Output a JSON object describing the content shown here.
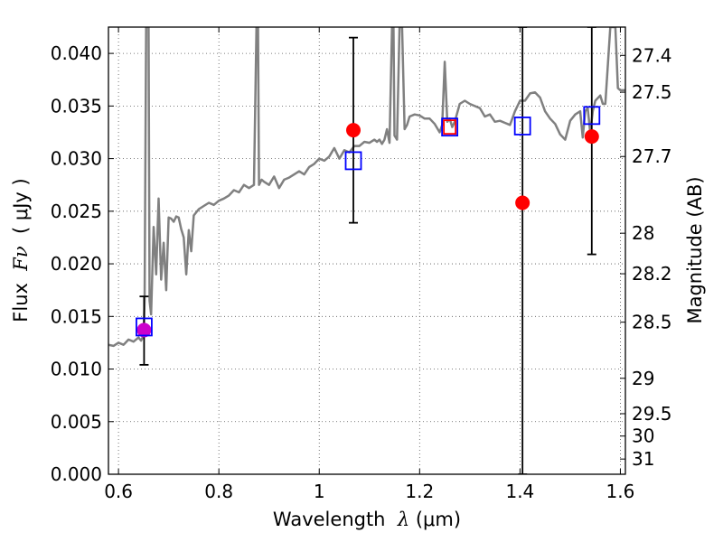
{
  "chart_data": {
    "type": "line",
    "xlabel": "Wavelength",
    "xlabel_symbol": "λ",
    "xlabel_unit": "(μm)",
    "ylabel": "Flux",
    "ylabel_symbol": "Fν",
    "ylabel_unit": "( μJy )",
    "ylabel_right": "Magnitude (AB)",
    "xlim": [
      0.58,
      1.61
    ],
    "ylim": [
      0.0,
      0.0425
    ],
    "grid": true,
    "x_ticks": [
      {
        "value": 0.6,
        "label": "0.6"
      },
      {
        "value": 0.8,
        "label": "0.8"
      },
      {
        "value": 1.0,
        "label": "1"
      },
      {
        "value": 1.2,
        "label": "1.2"
      },
      {
        "value": 1.4,
        "label": "1.4"
      },
      {
        "value": 1.6,
        "label": "1.6"
      }
    ],
    "y_ticks": [
      {
        "value": 0.0,
        "label": "0.000"
      },
      {
        "value": 0.005,
        "label": "0.005"
      },
      {
        "value": 0.01,
        "label": "0.010"
      },
      {
        "value": 0.015,
        "label": "0.015"
      },
      {
        "value": 0.02,
        "label": "0.020"
      },
      {
        "value": 0.025,
        "label": "0.025"
      },
      {
        "value": 0.03,
        "label": "0.030"
      },
      {
        "value": 0.035,
        "label": "0.035"
      },
      {
        "value": 0.04,
        "label": "0.040"
      }
    ],
    "y_right_ticks": [
      {
        "value": 27.4,
        "label": "27.4"
      },
      {
        "value": 27.5,
        "label": "27.5"
      },
      {
        "value": 27.7,
        "label": "27.7"
      },
      {
        "value": 28.0,
        "label": "28"
      },
      {
        "value": 28.2,
        "label": "28.2"
      },
      {
        "value": 28.5,
        "label": "28.5"
      },
      {
        "value": 29.0,
        "label": "29"
      },
      {
        "value": 29.5,
        "label": "29.5"
      },
      {
        "value": 30.0,
        "label": "30"
      },
      {
        "value": 31.0,
        "label": "31"
      }
    ],
    "series": [
      {
        "role": "model_spectrum",
        "color": "#808080",
        "x": [
          0.58,
          0.59,
          0.6,
          0.61,
          0.62,
          0.63,
          0.64,
          0.645,
          0.65,
          0.652,
          0.655,
          0.66,
          0.662,
          0.665,
          0.67,
          0.675,
          0.68,
          0.685,
          0.69,
          0.695,
          0.7,
          0.705,
          0.71,
          0.715,
          0.72,
          0.725,
          0.73,
          0.735,
          0.74,
          0.745,
          0.75,
          0.76,
          0.77,
          0.78,
          0.79,
          0.8,
          0.81,
          0.82,
          0.83,
          0.84,
          0.85,
          0.86,
          0.87,
          0.875,
          0.876,
          0.878,
          0.88,
          0.885,
          0.89,
          0.9,
          0.91,
          0.92,
          0.93,
          0.94,
          0.95,
          0.96,
          0.97,
          0.98,
          0.99,
          1.0,
          1.01,
          1.02,
          1.03,
          1.04,
          1.05,
          1.06,
          1.07,
          1.08,
          1.09,
          1.1,
          1.11,
          1.115,
          1.12,
          1.125,
          1.13,
          1.135,
          1.14,
          1.145,
          1.148,
          1.15,
          1.155,
          1.16,
          1.165,
          1.17,
          1.175,
          1.18,
          1.19,
          1.2,
          1.21,
          1.22,
          1.23,
          1.24,
          1.245,
          1.25,
          1.255,
          1.26,
          1.265,
          1.27,
          1.28,
          1.29,
          1.3,
          1.31,
          1.32,
          1.33,
          1.34,
          1.35,
          1.36,
          1.37,
          1.38,
          1.39,
          1.4,
          1.41,
          1.42,
          1.43,
          1.44,
          1.45,
          1.46,
          1.47,
          1.48,
          1.49,
          1.5,
          1.51,
          1.52,
          1.525,
          1.53,
          1.535,
          1.54,
          1.545,
          1.55,
          1.56,
          1.565,
          1.57,
          1.58,
          1.585,
          1.59,
          1.595,
          1.6,
          1.61
        ],
        "y": [
          0.0123,
          0.0122,
          0.0125,
          0.0123,
          0.0128,
          0.0126,
          0.013,
          0.0127,
          0.0132,
          0.0165,
          0.0425,
          0.0425,
          0.0165,
          0.0152,
          0.0235,
          0.019,
          0.0262,
          0.0185,
          0.022,
          0.0175,
          0.0244,
          0.0243,
          0.024,
          0.0245,
          0.0244,
          0.0233,
          0.0225,
          0.019,
          0.0232,
          0.0212,
          0.0246,
          0.0252,
          0.0255,
          0.0258,
          0.0256,
          0.026,
          0.0262,
          0.0265,
          0.027,
          0.0268,
          0.0275,
          0.0272,
          0.0275,
          0.0425,
          0.0425,
          0.0425,
          0.0275,
          0.028,
          0.0278,
          0.0275,
          0.0283,
          0.0272,
          0.028,
          0.0282,
          0.0285,
          0.0288,
          0.0285,
          0.0292,
          0.0295,
          0.03,
          0.0298,
          0.0302,
          0.031,
          0.03,
          0.0308,
          0.0306,
          0.0312,
          0.0312,
          0.0316,
          0.0315,
          0.0318,
          0.0316,
          0.0318,
          0.0314,
          0.0318,
          0.0328,
          0.0315,
          0.0425,
          0.0425,
          0.0322,
          0.0318,
          0.0425,
          0.0425,
          0.0328,
          0.0332,
          0.034,
          0.0342,
          0.0341,
          0.0338,
          0.0338,
          0.0333,
          0.0325,
          0.0332,
          0.0392,
          0.0335,
          0.0338,
          0.033,
          0.0335,
          0.0352,
          0.0355,
          0.0352,
          0.035,
          0.0348,
          0.034,
          0.0342,
          0.0335,
          0.0336,
          0.0334,
          0.0332,
          0.0345,
          0.0355,
          0.0355,
          0.0362,
          0.0363,
          0.0358,
          0.0345,
          0.0338,
          0.0333,
          0.0323,
          0.0318,
          0.0336,
          0.0342,
          0.0345,
          0.032,
          0.0345,
          0.0348,
          0.0325,
          0.0345,
          0.0355,
          0.036,
          0.0352,
          0.0352,
          0.0425,
          0.0425,
          0.0425,
          0.0367,
          0.0365,
          0.0365
        ]
      }
    ],
    "observed_points": [
      {
        "x": 0.651,
        "y": 0.0137,
        "err_low": 0.0104,
        "err_high": 0.0169,
        "color": "#cc00cc"
      },
      {
        "x": 1.068,
        "y": 0.0327,
        "err_low": 0.0239,
        "err_high": 0.0415,
        "color": "#ff0000"
      },
      {
        "x": 1.405,
        "y": 0.0258,
        "err_low": 0.0,
        "err_high": 0.0425,
        "color": "#ff0000"
      },
      {
        "x": 1.543,
        "y": 0.0321,
        "err_low": 0.0209,
        "err_high": 0.0425,
        "color": "#ff0000"
      }
    ],
    "model_photometry": [
      {
        "x": 0.651,
        "y": 0.014,
        "color": "#0000ff"
      },
      {
        "x": 1.068,
        "y": 0.0298,
        "color": "#0000ff"
      },
      {
        "x": 1.26,
        "y": 0.033,
        "color": "#0000ff"
      },
      {
        "x": 1.405,
        "y": 0.0331,
        "color": "#0000ff"
      },
      {
        "x": 1.543,
        "y": 0.0341,
        "color": "#0000ff"
      }
    ],
    "highlight_box": {
      "x": 1.26,
      "y": 0.033,
      "color": "#ff0000"
    }
  }
}
